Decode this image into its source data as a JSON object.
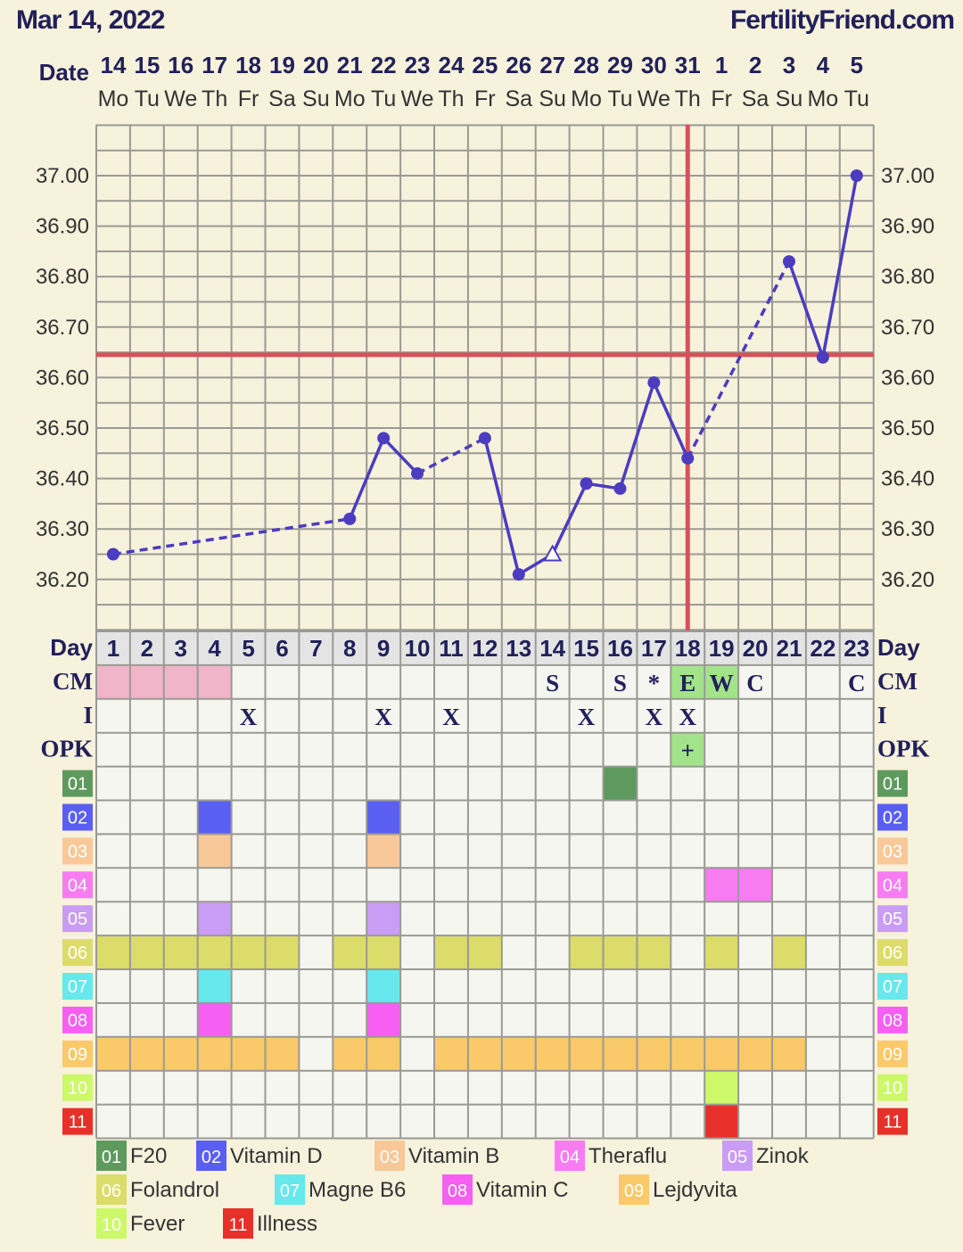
{
  "header": {
    "title": "Mar 14, 2022",
    "site": "FertilityFriend.com"
  },
  "chart_data": {
    "type": "line",
    "title": "Mar 14, 2022",
    "date_label": "Date",
    "day_label": "Day",
    "dates": [
      "14",
      "15",
      "16",
      "17",
      "18",
      "19",
      "20",
      "21",
      "22",
      "23",
      "24",
      "25",
      "26",
      "27",
      "28",
      "29",
      "30",
      "31",
      "1",
      "2",
      "3",
      "4",
      "5"
    ],
    "weekdays": [
      "Mo",
      "Tu",
      "We",
      "Th",
      "Fr",
      "Sa",
      "Su",
      "Mo",
      "Tu",
      "We",
      "Th",
      "Fr",
      "Sa",
      "Su",
      "Mo",
      "Tu",
      "We",
      "Th",
      "Fr",
      "Sa",
      "Su",
      "Mo",
      "Tu"
    ],
    "days": [
      1,
      2,
      3,
      4,
      5,
      6,
      7,
      8,
      9,
      10,
      11,
      12,
      13,
      14,
      15,
      16,
      17,
      18,
      19,
      20,
      21,
      22,
      23
    ],
    "ylim": [
      36.1,
      37.1
    ],
    "yticks": [
      "37.00",
      "36.90",
      "36.80",
      "36.70",
      "36.60",
      "36.50",
      "36.40",
      "36.30",
      "36.20"
    ],
    "ytick_values": [
      37.0,
      36.9,
      36.8,
      36.7,
      36.6,
      36.5,
      36.4,
      36.3,
      36.2
    ],
    "temperatures": [
      {
        "day": 1,
        "temp": 36.25
      },
      {
        "day": 8,
        "temp": 36.32
      },
      {
        "day": 9,
        "temp": 36.48
      },
      {
        "day": 10,
        "temp": 36.41
      },
      {
        "day": 12,
        "temp": 36.48
      },
      {
        "day": 13,
        "temp": 36.21
      },
      {
        "day": 14,
        "temp": 36.25,
        "marker": "open-triangle"
      },
      {
        "day": 15,
        "temp": 36.39
      },
      {
        "day": 16,
        "temp": 36.38
      },
      {
        "day": 17,
        "temp": 36.59
      },
      {
        "day": 18,
        "temp": 36.44
      },
      {
        "day": 21,
        "temp": 36.83
      },
      {
        "day": 22,
        "temp": 36.64
      },
      {
        "day": 23,
        "temp": 37.0
      }
    ],
    "coverline": 36.645,
    "ovulation_day": 18,
    "grid": true
  },
  "rows": {
    "cm": {
      "label": "CM",
      "pink_days": [
        1,
        2,
        3,
        4
      ],
      "entries": [
        {
          "day": 14,
          "v": "S"
        },
        {
          "day": 16,
          "v": "S"
        },
        {
          "day": 17,
          "v": "*"
        },
        {
          "day": 18,
          "v": "E",
          "green": true
        },
        {
          "day": 19,
          "v": "W",
          "green": true
        },
        {
          "day": 20,
          "v": "C"
        },
        {
          "day": 23,
          "v": "C"
        }
      ]
    },
    "intercourse": {
      "label": "I",
      "entries": [
        {
          "day": 5,
          "v": "X"
        },
        {
          "day": 9,
          "v": "X"
        },
        {
          "day": 11,
          "v": "X"
        },
        {
          "day": 15,
          "v": "X"
        },
        {
          "day": 17,
          "v": "X"
        },
        {
          "day": 18,
          "v": "X"
        }
      ]
    },
    "opk": {
      "label": "OPK",
      "entries": [
        {
          "day": 18,
          "v": "+",
          "green": true
        }
      ]
    }
  },
  "meds": [
    {
      "code": "01",
      "name": "F20",
      "color": "#5e9a5e",
      "days": [
        16
      ]
    },
    {
      "code": "02",
      "name": "Vitamin D",
      "color": "#5b5ef2",
      "days": [
        4,
        9
      ]
    },
    {
      "code": "03",
      "name": "Vitamin B",
      "color": "#f9c898",
      "days": [
        4,
        9
      ]
    },
    {
      "code": "04",
      "name": "Theraflu",
      "color": "#f77cf2",
      "days": [
        19,
        20
      ]
    },
    {
      "code": "05",
      "name": "Zinok",
      "color": "#c99cf5",
      "days": [
        4,
        9
      ]
    },
    {
      "code": "06",
      "name": "Folandrol",
      "color": "#dcdc6a",
      "days": [
        1,
        2,
        3,
        4,
        5,
        6,
        8,
        9,
        11,
        12,
        15,
        16,
        17,
        19,
        21
      ]
    },
    {
      "code": "07",
      "name": "Magne B6",
      "color": "#66e8ec",
      "days": [
        4,
        9
      ]
    },
    {
      "code": "08",
      "name": "Vitamin C",
      "color": "#f65ff2",
      "days": [
        4,
        9
      ]
    },
    {
      "code": "09",
      "name": "Lejdyvita",
      "color": "#fac96a",
      "days": [
        1,
        2,
        3,
        4,
        5,
        6,
        8,
        9,
        11,
        12,
        13,
        14,
        15,
        16,
        17,
        18,
        19,
        20,
        21
      ]
    },
    {
      "code": "10",
      "name": "Fever",
      "color": "#ccf86a",
      "days": [
        19
      ]
    },
    {
      "code": "11",
      "name": "Illness",
      "color": "#e8302a",
      "days": [
        19
      ]
    }
  ],
  "colors": {
    "line": "#4b3cc0",
    "red": "#d9505a",
    "grid": "#9a9a94",
    "cell": "#f6f6f1",
    "pink": "#f0b5c8",
    "green": "#a3e48a",
    "dayrow": "#e4e4e4",
    "text": "#22205a"
  }
}
